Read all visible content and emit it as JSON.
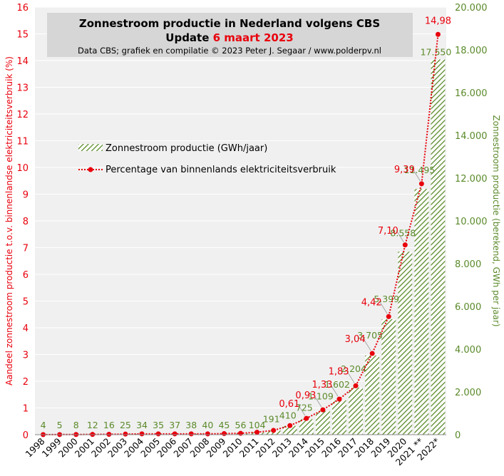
{
  "chart_data": {
    "type": "bar+line",
    "title_main": "Zonnestroom productie in Nederland volgens CBS",
    "title_update_prefix": "Update ",
    "title_update_date": "6 maart 2023",
    "subtitle": "Data CBS;  grafiek en compilatie  © 2023 Peter J. Segaar / www.polderpv.nl",
    "ylabel_left": "Aandeel zonnestroom productie t.o.v. binnenlandse  elektriciteitsverbruik (%)",
    "ylabel_right": "Zonnestroom  productie  (berekend,  GWh  per jaar)",
    "categories": [
      "1998",
      "1999",
      "2000",
      "2001",
      "2002",
      "2003",
      "2004",
      "2005",
      "2006",
      "2007",
      "2008",
      "2009",
      "2010",
      "2011",
      "2012",
      "2013",
      "2014",
      "2015",
      "2016",
      "2017",
      "2018",
      "2019",
      "2020",
      "2021 **",
      "2022*"
    ],
    "left_axis": {
      "min": 0,
      "max": 16,
      "ticks": [
        "0",
        "1",
        "2",
        "3",
        "4",
        "5",
        "6",
        "7",
        "8",
        "9",
        "10",
        "11",
        "12",
        "13",
        "14",
        "15",
        "16"
      ]
    },
    "right_axis": {
      "min": 0,
      "max": 20000,
      "ticks": [
        "0",
        "2.000",
        "4.000",
        "6.000",
        "8.000",
        "10.000",
        "12.000",
        "14.000",
        "16.000",
        "18.000",
        "20.000"
      ]
    },
    "series": [
      {
        "name": "Zonnestroom productie (GWh/jaar)",
        "axis": "right",
        "values": [
          4,
          5,
          8,
          12,
          16,
          25,
          34,
          35,
          37,
          38,
          40,
          45,
          56,
          104,
          191,
          410,
          725,
          1109,
          1602,
          2204,
          3705,
          5399,
          8558,
          11495,
          17550
        ],
        "labels": [
          "4",
          "5",
          "8",
          "12",
          "16",
          "25",
          "34",
          "35",
          "37",
          "38",
          "40",
          "45",
          "56",
          "104",
          "191",
          "410",
          "725",
          "1.109",
          "1.602",
          "2.204",
          "3.705",
          "5.399",
          "8.558",
          "11.495",
          "17.550"
        ],
        "color": "#5a8a2a"
      },
      {
        "name": "Percentage van binnenlands elektriciteitsverbruik",
        "axis": "left",
        "values": [
          0.004,
          0.005,
          0.007,
          0.01,
          0.014,
          0.022,
          0.03,
          0.03,
          0.03,
          0.03,
          0.03,
          0.04,
          0.05,
          0.09,
          0.16,
          0.34,
          0.61,
          0.93,
          1.33,
          1.83,
          3.04,
          4.42,
          7.1,
          9.39,
          14.98
        ],
        "labels": [
          "",
          "",
          "",
          "",
          "",
          "",
          "",
          "",
          "",
          "",
          "",
          "",
          "",
          "",
          "",
          "",
          "0,61",
          "0,93",
          "1,33",
          "1,83",
          "3,04",
          "4,42",
          "7,10",
          "9,39",
          "14,98"
        ],
        "color": "#e8000c"
      }
    ],
    "grid": true,
    "legend_position": "center-left"
  }
}
